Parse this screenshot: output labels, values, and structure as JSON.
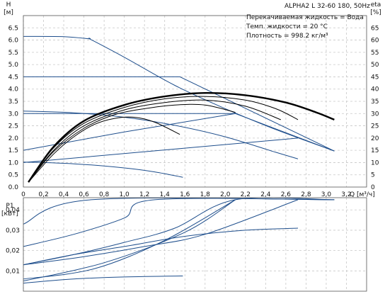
{
  "header": {
    "title": "ALPHA2 L 32-60 180, 50Hz",
    "info_lines": [
      "Перекачиваемая жидкость = Вода",
      "Темп. жидкости = 20 °C",
      "Плотность = 998.2 кг/м³"
    ]
  },
  "chart_data": [
    {
      "type": "line",
      "xlabel": "Q [м³/ч]",
      "ylabel": "H [м]",
      "y2label": "eta [%]",
      "xlim": [
        0,
        3.4
      ],
      "ylim": [
        0,
        7.0
      ],
      "y2lim": [
        0,
        70
      ],
      "x_ticks": [
        "0",
        "0,2",
        "0,4",
        "0,6",
        "0,8",
        "1,0",
        "1,2",
        "1,4",
        "1,6",
        "1,8",
        "2,0",
        "2,2",
        "2,4",
        "2,6",
        "2,8",
        "3,0",
        "3,2"
      ],
      "y_ticks": [
        "0.0",
        "0.5",
        "1.0",
        "1.5",
        "2.0",
        "2.5",
        "3.0",
        "3.5",
        "4.0",
        "4.5",
        "5.0",
        "5.5",
        "6.0",
        "6.5"
      ],
      "y2_ticks": [
        "0",
        "5",
        "10",
        "15",
        "20",
        "25",
        "30",
        "35",
        "40",
        "45",
        "50",
        "55",
        "60",
        "65"
      ],
      "grid": true,
      "head_curves": [
        {
          "x": [
            0,
            0.4,
            0.65,
            0.67,
            1.0,
            1.5,
            2.0,
            2.5,
            3.08
          ],
          "y": [
            6.15,
            6.14,
            6.05,
            6.02,
            5.3,
            4.15,
            3.2,
            2.35,
            1.47
          ]
        },
        {
          "x": [
            0,
            1.55,
            3.08
          ],
          "y": [
            4.5,
            4.5,
            1.47
          ]
        },
        {
          "x": [
            0,
            2.1,
            3.08
          ],
          "y": [
            3.0,
            3.0,
            1.47
          ]
        },
        {
          "x": [
            0,
            0.5,
            1.0,
            1.5,
            2.0,
            2.5,
            2.72
          ],
          "y": [
            3.1,
            3.03,
            2.85,
            2.52,
            2.05,
            1.42,
            1.15
          ]
        },
        {
          "x": [
            0,
            0.5,
            1.0,
            1.3,
            1.58
          ],
          "y": [
            1.02,
            0.95,
            0.78,
            0.62,
            0.4
          ]
        },
        {
          "x": [
            0,
            1.0,
            2.1
          ],
          "y": [
            1.5,
            2.25,
            3.0
          ]
        },
        {
          "x": [
            0,
            1.5,
            2.72
          ],
          "y": [
            1.0,
            1.55,
            2.0
          ]
        }
      ],
      "efficiency_curves": [
        {
          "x": [
            0.05,
            0.3,
            0.6,
            1.0,
            1.4,
            1.8,
            2.2,
            2.6,
            2.9,
            3.08
          ],
          "y": [
            2,
            16.5,
            27,
            33.5,
            37,
            38.4,
            37.5,
            34.5,
            30.5,
            27.5
          ]
        },
        {
          "x": [
            0.05,
            0.3,
            0.6,
            1.0,
            1.4,
            1.8,
            2.2,
            2.5,
            2.72
          ],
          "y": [
            2,
            16,
            26,
            32.5,
            36,
            37,
            35.5,
            32,
            27.5
          ]
        },
        {
          "x": [
            0.05,
            0.3,
            0.6,
            1.0,
            1.4,
            1.8,
            2.2,
            2.55
          ],
          "y": [
            2,
            15,
            25,
            31.5,
            34.5,
            35.5,
            33,
            27.5
          ]
        },
        {
          "x": [
            0.05,
            0.3,
            0.6,
            0.9,
            1.2,
            1.5,
            1.8,
            2.1
          ],
          "y": [
            2,
            14.5,
            24,
            29.5,
            32,
            33.5,
            33.5,
            30.5
          ]
        },
        {
          "x": [
            0.05,
            0.3,
            0.5,
            0.7,
            0.9,
            1.1,
            1.3,
            1.55
          ],
          "y": [
            2,
            13.5,
            20.5,
            25.5,
            28,
            28.5,
            26.5,
            21.5
          ]
        }
      ]
    },
    {
      "type": "line",
      "xlabel": "",
      "ylabel": "P1 [кВт]",
      "xlim": [
        0,
        3.4
      ],
      "ylim": [
        0,
        0.046
      ],
      "y_ticks": [
        "0,01",
        "0,02",
        "0,03",
        "0,04"
      ],
      "grid": true,
      "series": [
        {
          "x": [
            0,
            0.67,
            3.08
          ],
          "y": [
            0.033,
            0.045,
            0.045
          ]
        },
        {
          "x": [
            0,
            0.5,
            1.0,
            1.3,
            3.08
          ],
          "y": [
            0.022,
            0.028,
            0.036,
            0.045,
            0.045
          ]
        },
        {
          "x": [
            0,
            0.5,
            1.0,
            1.5,
            2.1,
            3.08
          ],
          "y": [
            0.013,
            0.018,
            0.024,
            0.031,
            0.045,
            0.045
          ]
        },
        {
          "x": [
            0,
            0.6,
            1.2,
            1.8,
            2.72
          ],
          "y": [
            0.013,
            0.017,
            0.022,
            0.028,
            0.045
          ]
        },
        {
          "x": [
            0,
            0.7,
            1.4,
            2.1
          ],
          "y": [
            0.006,
            0.011,
            0.025,
            0.045
          ]
        },
        {
          "x": [
            0,
            0.8,
            1.6,
            2.1
          ],
          "y": [
            0.005,
            0.014,
            0.029,
            0.045
          ]
        },
        {
          "x": [
            0,
            0.5,
            1.0,
            1.6,
            2.2,
            2.72
          ],
          "y": [
            0.013,
            0.018,
            0.022,
            0.027,
            0.03,
            0.031
          ]
        },
        {
          "x": [
            0,
            0.5,
            1.0,
            1.58
          ],
          "y": [
            0.004,
            0.006,
            0.007,
            0.0075
          ]
        }
      ]
    }
  ]
}
